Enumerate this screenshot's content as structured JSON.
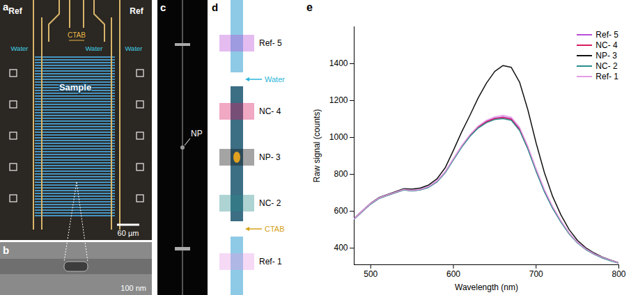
{
  "panels": {
    "a": {
      "letter": "a",
      "ref_labels": [
        "Ref",
        "Ref"
      ],
      "ctab": "CTAB",
      "water": [
        "Water",
        "Water",
        "Water"
      ],
      "sample": "Sample",
      "scale_bar": "60 µm"
    },
    "b": {
      "letter": "b",
      "scale_bar": "100 nm"
    },
    "c": {
      "letter": "c",
      "label": "NP"
    },
    "d": {
      "letter": "d",
      "regions": [
        "Ref- 5",
        "NC- 4",
        "NP- 3",
        "NC- 2",
        "Ref- 1"
      ],
      "inlets": [
        "Water",
        "CTAB"
      ]
    },
    "e": {
      "letter": "e"
    }
  },
  "chart_data": {
    "type": "line",
    "x_label": "Wavelength (nm)",
    "y_label": "Raw signal (counts)",
    "x": [
      480,
      490,
      500,
      510,
      520,
      530,
      540,
      550,
      560,
      570,
      580,
      590,
      600,
      610,
      620,
      630,
      640,
      650,
      660,
      670,
      680,
      690,
      700,
      710,
      720,
      730,
      740,
      750,
      760,
      770,
      780,
      790,
      800
    ],
    "xlim": [
      480,
      800
    ],
    "xticks": [
      500,
      600,
      700,
      800
    ],
    "ylim": [
      310,
      1600
    ],
    "yticks": [
      400,
      600,
      800,
      1000,
      1200,
      1400
    ],
    "legend": "top-right",
    "series": [
      {
        "name": "Ref- 5",
        "color": "#b94fd8",
        "values": [
          562,
          603,
          643,
          673,
          689,
          704,
          718,
          714,
          719,
          734,
          764,
          814,
          884,
          953,
          1012,
          1058,
          1088,
          1105,
          1112,
          1102,
          1048,
          946,
          825,
          713,
          621,
          546,
          481,
          431,
          395,
          369,
          349,
          334,
          319
        ]
      },
      {
        "name": "NC- 4",
        "color": "#d81b60",
        "values": [
          558,
          600,
          640,
          670,
          686,
          701,
          716,
          711,
          716,
          731,
          761,
          811,
          882,
          951,
          1010,
          1056,
          1085,
          1102,
          1108,
          1098,
          1044,
          943,
          822,
          711,
          620,
          545,
          480,
          430,
          394,
          368,
          348,
          333,
          318
        ]
      },
      {
        "name": "NP- 3",
        "color": "#111111",
        "values": [
          560,
          602,
          643,
          674,
          690,
          706,
          722,
          720,
          726,
          742,
          775,
          835,
          930,
          1030,
          1120,
          1215,
          1295,
          1358,
          1390,
          1380,
          1300,
          1150,
          970,
          810,
          680,
          580,
          500,
          442,
          402,
          374,
          352,
          336,
          320
        ]
      },
      {
        "name": "NC- 2",
        "color": "#2a8c8c",
        "values": [
          557,
          599,
          639,
          669,
          685,
          700,
          715,
          710,
          715,
          729,
          758,
          808,
          878,
          947,
          1006,
          1051,
          1080,
          1097,
          1102,
          1093,
          1038,
          937,
          816,
          705,
          615,
          541,
          477,
          428,
          393,
          367,
          347,
          332,
          318
        ]
      },
      {
        "name": "Ref- 1",
        "color": "#e59be5",
        "values": [
          560,
          602,
          642,
          672,
          688,
          703,
          718,
          713,
          718,
          733,
          763,
          813,
          885,
          955,
          1015,
          1062,
          1093,
          1112,
          1120,
          1110,
          1055,
          952,
          830,
          718,
          625,
          548,
          482,
          432,
          396,
          370,
          350,
          335,
          320
        ]
      }
    ]
  }
}
